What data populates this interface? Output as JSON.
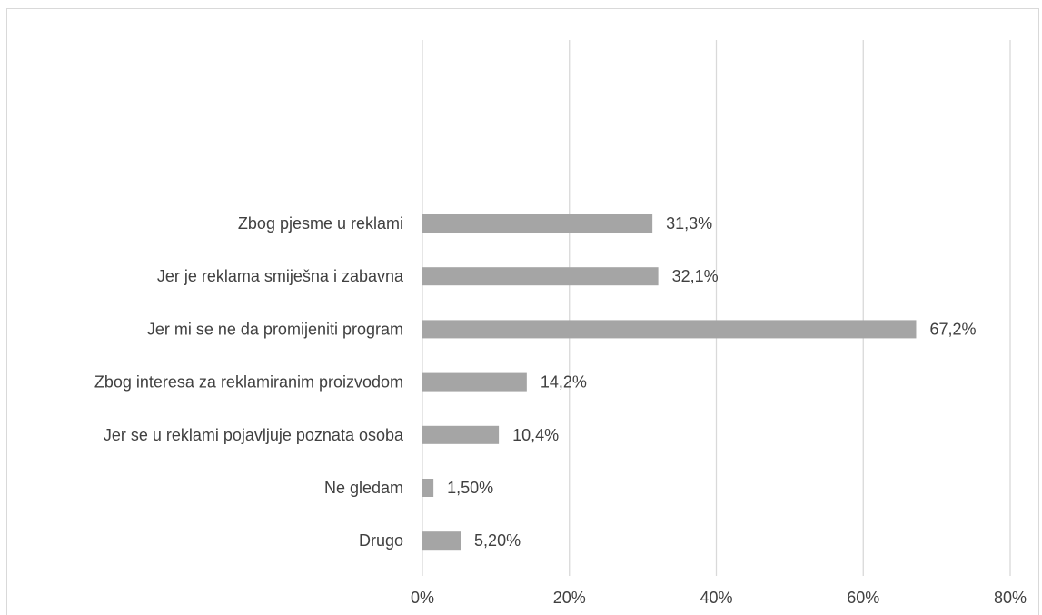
{
  "chart_data": {
    "type": "bar",
    "orientation": "horizontal",
    "categories": [
      "Zbog pjesme u reklami",
      "Jer je reklama smiješna i zabavna",
      "Jer mi se ne da promijeniti program",
      "Zbog interesa za reklamiranim proizvodom",
      "Jer se u reklami pojavljuje poznata osoba",
      "Ne gledam",
      "Drugo"
    ],
    "values": [
      31.3,
      32.1,
      67.2,
      14.2,
      10.4,
      1.5,
      5.2
    ],
    "data_labels": [
      "31,3%",
      "32,1%",
      "67,2%",
      "14,2%",
      "10,4%",
      "1,50%",
      "5,20%"
    ],
    "xlim": [
      0,
      80
    ],
    "x_ticks": [
      0,
      20,
      40,
      60,
      80
    ],
    "x_tick_labels": [
      "0%",
      "20%",
      "40%",
      "60%",
      "80%"
    ],
    "bar_color": "#a5a5a5",
    "grid": "vertical",
    "legend": "none"
  }
}
